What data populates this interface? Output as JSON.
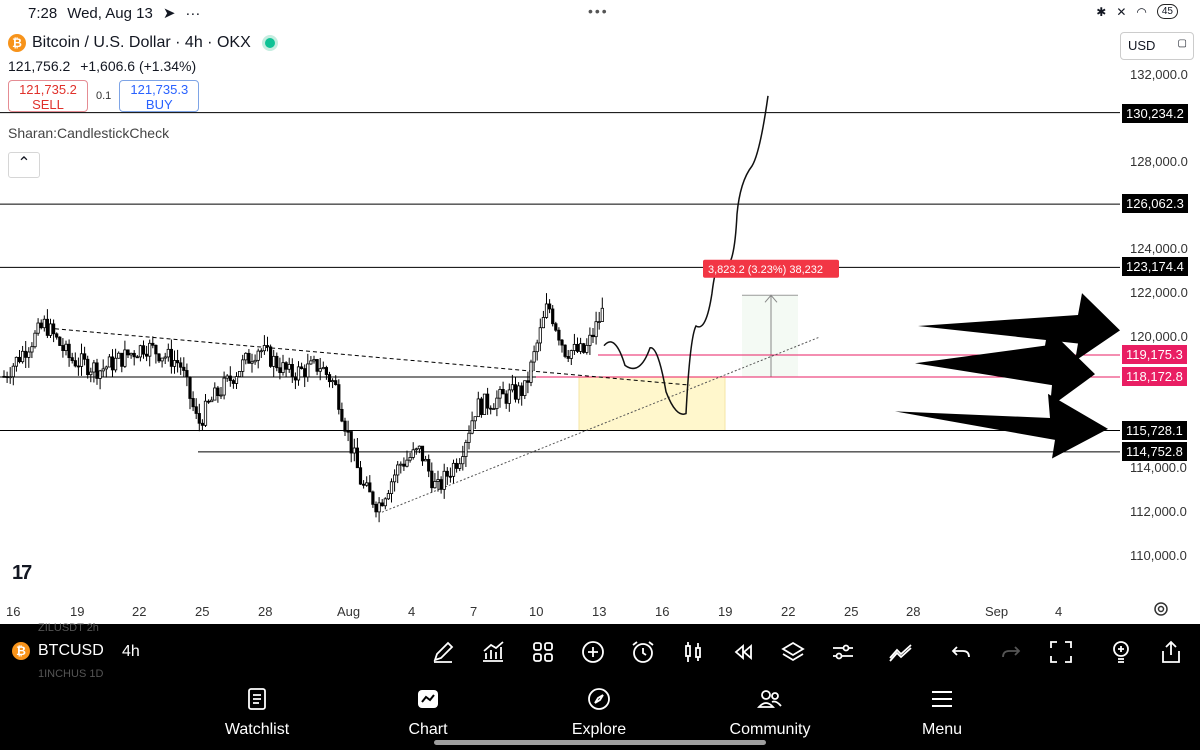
{
  "status_bar": {
    "time": "7:28",
    "date": "Wed, Aug 13",
    "battery": "45",
    "icons": [
      "telegram-icon",
      "more-dots-icon",
      "bluetooth-icon",
      "mute-icon",
      "wifi-icon"
    ]
  },
  "header": {
    "title": "Bitcoin / U.S. Dollar · 4h · OKX",
    "last_price": "121,756.2",
    "change": "+1,606.6 (+1.34%)",
    "sell_price": "121,735.2",
    "sell_label": "SELL",
    "quantity": "0.1",
    "buy_price": "121,735.3",
    "buy_label": "BUY",
    "indicator": "Sharan:CandlestickCheck",
    "currency": "USD"
  },
  "price_axis": {
    "labels": [
      "132,000.0",
      "128,000.0",
      "124,000.0",
      "122,000.0",
      "120,000.0",
      "114,000.0",
      "112,000.0",
      "110,000.0"
    ],
    "tags": [
      "130,234.2",
      "126,062.3",
      "123,174.4",
      "119,175.3",
      "118,172.8",
      "115,728.1",
      "114,752.8"
    ]
  },
  "date_axis": [
    "16",
    "19",
    "22",
    "25",
    "28",
    "Aug",
    "4",
    "7",
    "10",
    "13",
    "16",
    "19",
    "22",
    "25",
    "28",
    "Sep",
    "4"
  ],
  "measure_label": "3,823.2 (3.23%) 38,232",
  "toolbar": {
    "symbol": "BTCUSD",
    "timeframe": "4h",
    "ghost_above": "ZILUSDT  2h",
    "ghost_below": "1INCHUS  1D"
  },
  "nav": {
    "watchlist": "Watchlist",
    "chart": "Chart",
    "explore": "Explore",
    "community": "Community",
    "menu": "Menu"
  },
  "colors": {
    "accent_red": "#e0312b",
    "accent_blue": "#2962ff",
    "up": "#26a69a",
    "down": "#ef5350",
    "pink_level": "#e91e63",
    "highlight": "#fff7cc"
  },
  "chart_data": {
    "type": "candlestick",
    "title": "Bitcoin / U.S. Dollar · 4h · OKX",
    "y_range": [
      108500,
      133500
    ],
    "horizontal_levels": [
      130234.2,
      126062.3,
      123174.4,
      119175.3,
      118172.8,
      115728.1,
      114752.8
    ],
    "last_close": 121756.2
  }
}
